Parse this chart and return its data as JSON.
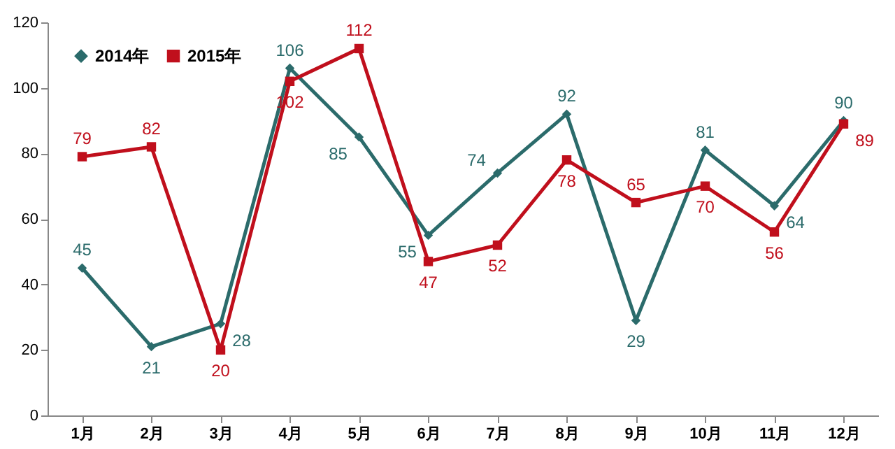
{
  "chart_data": {
    "type": "line",
    "categories": [
      "1月",
      "2月",
      "3月",
      "4月",
      "5月",
      "6月",
      "7月",
      "8月",
      "9月",
      "10月",
      "11月",
      "12月"
    ],
    "series": [
      {
        "name": "2014年",
        "color": "#2b6b6b",
        "marker": "diamond",
        "values": [
          45,
          21,
          28,
          106,
          85,
          55,
          74,
          92,
          29,
          81,
          64,
          90
        ]
      },
      {
        "name": "2015年",
        "color": "#c00f1c",
        "marker": "square",
        "values": [
          79,
          82,
          20,
          102,
          112,
          47,
          52,
          78,
          65,
          70,
          56,
          89
        ]
      }
    ],
    "ylim": [
      0,
      120
    ],
    "yticks": [
      0,
      20,
      40,
      60,
      80,
      100,
      120
    ],
    "grid": false,
    "legend": "top left",
    "data_labels": true
  }
}
